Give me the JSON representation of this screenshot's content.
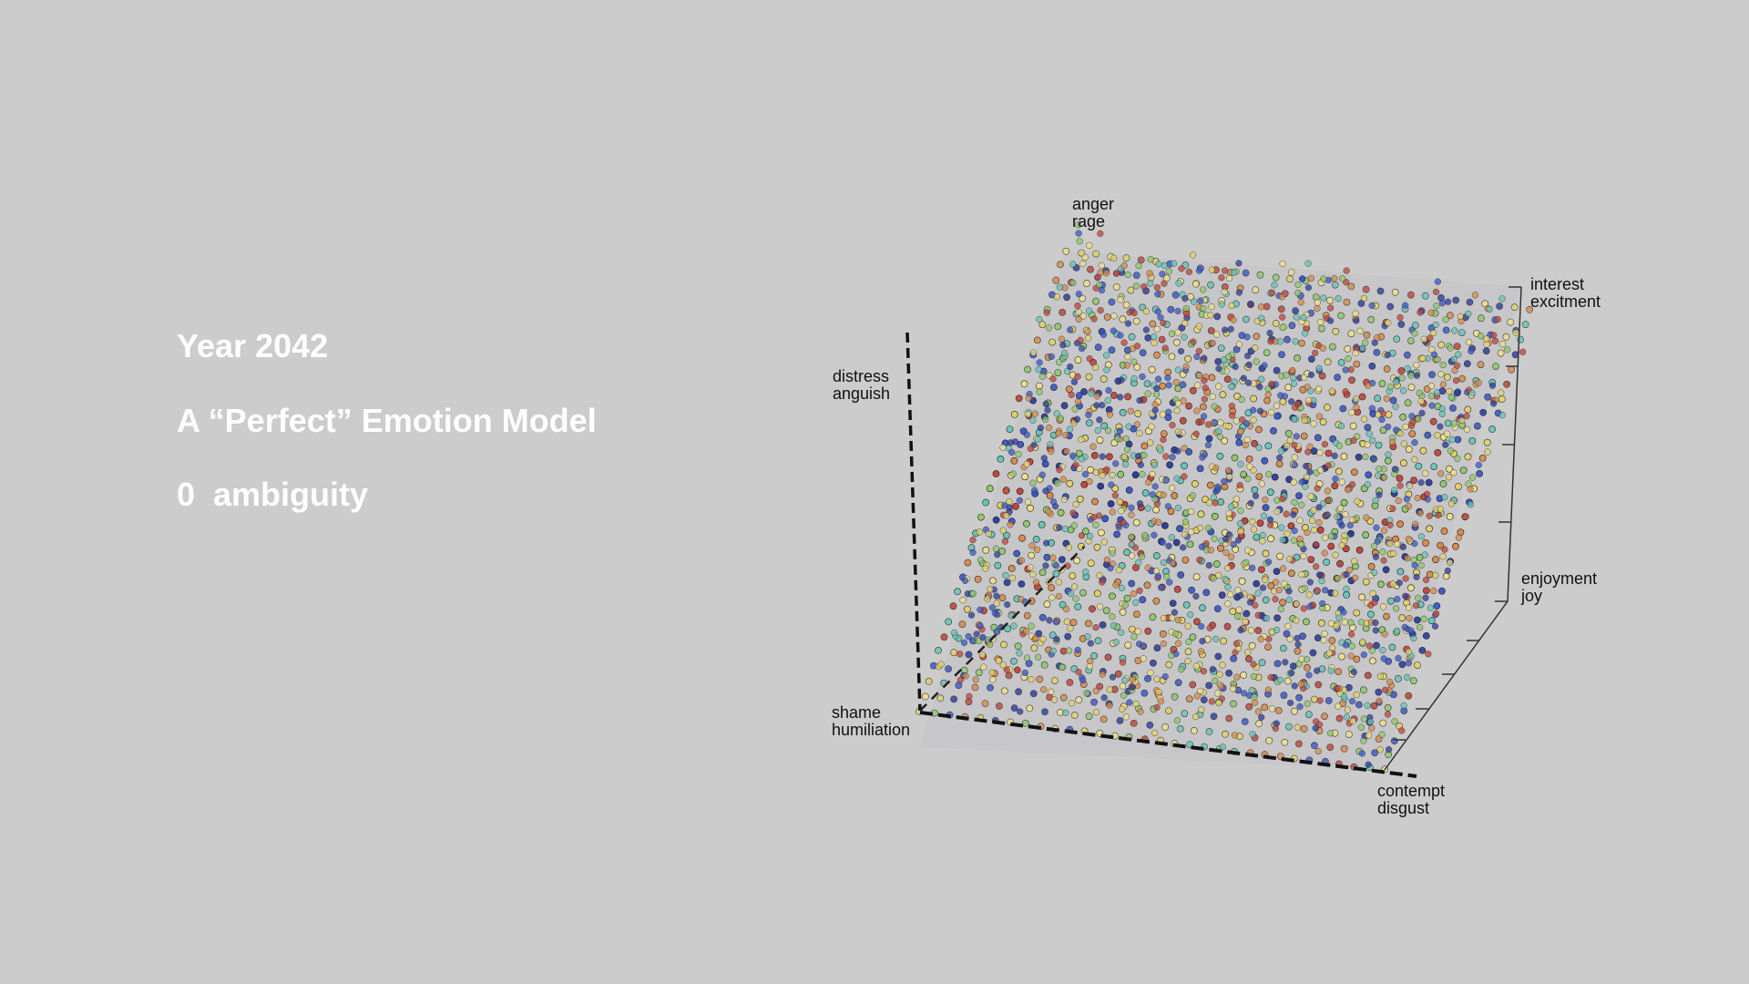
{
  "slide": {
    "lines": [
      "Year 2042",
      "A “Perfect” Emotion Model",
      "0  ambiguity"
    ]
  },
  "figure": {
    "axis_labels": {
      "top": [
        "anger",
        "rage"
      ],
      "upper_left": [
        "distress",
        "anguish"
      ],
      "lower_left": [
        "shame",
        "humiliation"
      ],
      "upper_right": [
        "interest",
        "excitment"
      ],
      "middle_right": [
        "enjoyment",
        "joy"
      ],
      "bottom_right": [
        "contempt",
        "disgust"
      ]
    },
    "grid_points": 32,
    "point_colors": [
      "#2b3d9e",
      "#c1453a",
      "#e3d267",
      "#68c4b8",
      "#8ec96a",
      "#d98b4a",
      "#3a58c9",
      "#f0e08a"
    ]
  }
}
